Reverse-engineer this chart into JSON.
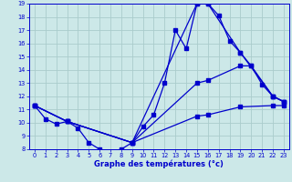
{
  "xlabel": "Graphe des températures (°c)",
  "bg_color": "#cce8e8",
  "grid_color": "#aacccc",
  "line_color": "#0000cc",
  "xlim": [
    -0.5,
    23.5
  ],
  "ylim": [
    8,
    19
  ],
  "xticks": [
    0,
    1,
    2,
    3,
    4,
    5,
    6,
    7,
    8,
    9,
    10,
    11,
    12,
    13,
    14,
    15,
    16,
    17,
    18,
    19,
    20,
    21,
    22,
    23
  ],
  "yticks": [
    8,
    9,
    10,
    11,
    12,
    13,
    14,
    15,
    16,
    17,
    18,
    19
  ],
  "lines": [
    {
      "x": [
        0,
        1,
        2,
        3,
        4,
        5,
        6,
        7,
        8,
        9,
        10,
        11,
        12,
        13,
        14,
        15,
        16,
        17,
        18,
        19,
        20,
        21,
        22,
        23
      ],
      "y": [
        11.3,
        10.3,
        9.9,
        10.1,
        9.6,
        8.5,
        8.0,
        7.8,
        8.0,
        8.5,
        9.7,
        10.6,
        13.0,
        17.0,
        15.6,
        19.0,
        19.0,
        18.1,
        16.2,
        15.3,
        14.3,
        12.9,
        12.0,
        11.6
      ]
    },
    {
      "x": [
        0,
        3,
        9,
        15,
        16,
        19,
        22,
        23
      ],
      "y": [
        11.3,
        10.1,
        8.5,
        19.0,
        19.0,
        15.3,
        12.0,
        11.6
      ]
    },
    {
      "x": [
        0,
        3,
        9,
        15,
        16,
        19,
        20,
        22,
        23
      ],
      "y": [
        11.3,
        10.1,
        8.5,
        13.0,
        13.2,
        14.3,
        14.3,
        12.0,
        11.6
      ]
    },
    {
      "x": [
        0,
        3,
        9,
        15,
        16,
        19,
        22,
        23
      ],
      "y": [
        11.3,
        10.1,
        8.5,
        10.5,
        10.6,
        11.2,
        11.3,
        11.3
      ]
    }
  ]
}
